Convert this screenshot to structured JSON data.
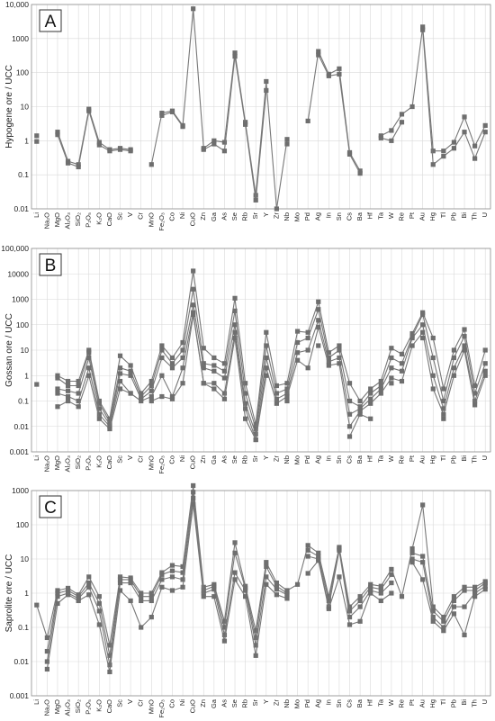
{
  "colors": {
    "series": "#777777",
    "marker": "#6e6e6e",
    "grid": "#d9d9d9",
    "frame": "#8c8c8c"
  },
  "chart_data": [
    {
      "type": "line",
      "yscale": "log",
      "panel_label": "A",
      "ylabel": "Hypogene ore / UCC",
      "ylim": [
        0.01,
        10000
      ],
      "yticks": [
        "0.01",
        "0.1",
        "1",
        "10",
        "100",
        "1000",
        "10,000"
      ],
      "categories": [
        "Li",
        "Na₂O",
        "MgO",
        "Al₂O₃",
        "SiO₂",
        "P₂O₅",
        "K₂O",
        "CaO",
        "Sc",
        "V",
        "Cr",
        "MnO",
        "Fe₂O₃",
        "Co",
        "Ni",
        "CuO",
        "Zn",
        "Ga",
        "As",
        "Se",
        "Rb",
        "Sr",
        "Y",
        "Zr",
        "Nb",
        "Mo",
        "Pd",
        "Ag",
        "In",
        "Sn",
        "Cs",
        "Ba",
        "Hf",
        "Ta",
        "W",
        "Re",
        "Pt",
        "Au",
        "Hg",
        "Tl",
        "Pb",
        "Bi",
        "Th",
        "U"
      ],
      "grid": true,
      "series": [
        {
          "values": [
            1.4,
            null,
            1.8,
            0.25,
            0.2,
            8.5,
            0.9,
            0.55,
            0.6,
            0.55,
            null,
            0.2,
            6.5,
            7.5,
            2.8,
            7500,
            0.6,
            1.0,
            0.9,
            380,
            3.5,
            0.025,
            55,
            0.01,
            1.1,
            null,
            3.8,
            420,
            90,
            130,
            0.45,
            0.13,
            null,
            1.4,
            2.0,
            6.0,
            10,
            2200,
            0.5,
            0.5,
            0.9,
            5.0,
            0.7,
            2.8
          ]
        },
        {
          "values": [
            0.95,
            null,
            1.5,
            0.22,
            0.17,
            7.5,
            0.75,
            0.5,
            0.55,
            0.5,
            null,
            null,
            5.5,
            7.0,
            2.6,
            null,
            0.55,
            0.8,
            0.5,
            300,
            3.0,
            0.018,
            30,
            null,
            0.8,
            null,
            null,
            330,
            80,
            90,
            0.4,
            0.11,
            null,
            1.2,
            1.0,
            3.5,
            null,
            1800,
            0.2,
            0.35,
            0.6,
            1.8,
            0.3,
            1.8
          ]
        }
      ]
    },
    {
      "type": "line",
      "yscale": "log",
      "panel_label": "B",
      "ylabel": "Gossan ore / UCC",
      "ylim": [
        0.001,
        100000
      ],
      "yticks": [
        "0.001",
        "0.01",
        "0.1",
        "1",
        "10",
        "100",
        "1000",
        "10000",
        "100,000"
      ],
      "categories": [
        "Li",
        "Na₂O",
        "MgO",
        "Al₂O₃",
        "SiO₂",
        "P₂O₅",
        "K₂O",
        "CaO",
        "Sc",
        "V",
        "Cr",
        "MnO",
        "Fe₂O₃",
        "Co",
        "Ni",
        "CuO",
        "Zn",
        "Ga",
        "As",
        "Se",
        "Rb",
        "Sr",
        "Y",
        "Zr",
        "Nb",
        "Mo",
        "Pd",
        "Ag",
        "In",
        "Sn",
        "Cs",
        "Ba",
        "Hf",
        "Ta",
        "W",
        "Re",
        "Pt",
        "Au",
        "Hg",
        "Tl",
        "Pb",
        "Bi",
        "Th",
        "U"
      ],
      "grid": true,
      "series": [
        {
          "values": [
            0.45,
            null,
            1.0,
            0.6,
            0.6,
            10,
            0.1,
            0.02,
            6.0,
            2.5,
            0.2,
            0.6,
            15,
            5.0,
            20,
            13000,
            12,
            5.0,
            3.0,
            1100,
            0.5,
            0.012,
            50,
            0.4,
            0.5,
            55,
            50,
            800,
            8.0,
            15,
            0.5,
            0.1,
            0.3,
            0.6,
            12,
            7.0,
            45,
            300,
            30,
            0.3,
            10,
            65,
            0.4,
            10
          ]
        },
        {
          "values": [
            null,
            null,
            0.8,
            0.4,
            0.4,
            8.0,
            0.08,
            0.015,
            2.0,
            1.5,
            0.15,
            0.4,
            10,
            3.0,
            10,
            2500,
            3.0,
            2.5,
            1.5,
            350,
            0.2,
            0.008,
            15,
            0.2,
            0.3,
            20,
            30,
            400,
            5.0,
            10,
            0.1,
            0.06,
            0.2,
            0.4,
            5.0,
            3.0,
            35,
            250,
            5.0,
            0.1,
            5.0,
            35,
            0.2,
            3.0
          ]
        },
        {
          "values": [
            null,
            null,
            0.3,
            0.25,
            0.2,
            5.0,
            0.05,
            0.012,
            1.2,
            1.0,
            0.12,
            0.25,
            5.0,
            2.0,
            5.0,
            600,
            2.0,
            1.5,
            0.8,
            100,
            0.08,
            0.005,
            5.0,
            0.12,
            0.2,
            8.0,
            10,
            150,
            3.5,
            5.0,
            0.03,
            0.05,
            0.12,
            0.3,
            2.0,
            1.5,
            30,
            100,
            1.0,
            0.05,
            2.0,
            15,
            0.1,
            1.5
          ]
        },
        {
          "values": [
            null,
            null,
            0.2,
            0.15,
            0.1,
            2.0,
            0.03,
            0.01,
            0.6,
            0.2,
            0.1,
            0.15,
            1.0,
            0.15,
            2.0,
            300,
            0.5,
            0.5,
            0.2,
            50,
            0.05,
            0.003,
            2.0,
            0.08,
            0.15,
            4.0,
            2.0,
            80,
            2.5,
            3.0,
            0.01,
            0.04,
            0.08,
            0.2,
            0.8,
            0.6,
            15,
            50,
            0.3,
            0.03,
            1.0,
            10,
            0.07,
            1.0
          ]
        },
        {
          "values": [
            null,
            null,
            0.06,
            0.1,
            0.06,
            1.0,
            0.02,
            0.008,
            0.3,
            0.2,
            null,
            0.1,
            0.15,
            0.12,
            0.5,
            250,
            0.5,
            0.3,
            0.12,
            30,
            0.02,
            0.003,
            1.0,
            null,
            0.1,
            null,
            null,
            15,
            null,
            null,
            0.004,
            0.03,
            0.02,
            null,
            0.5,
            null,
            null,
            30,
            null,
            0.02,
            null,
            null,
            null,
            null
          ]
        }
      ]
    },
    {
      "type": "line",
      "yscale": "log",
      "panel_label": "C",
      "ylabel": "Saprolite ore / UCC",
      "ylim": [
        0.001,
        1000
      ],
      "yticks": [
        "0.001",
        "0.01",
        "0.1",
        "1",
        "10",
        "100",
        "1000"
      ],
      "categories": [
        "Li",
        "Na₂O",
        "MgO",
        "Al₂O₃",
        "SiO₂",
        "P₂O₅",
        "K₂O",
        "CaO",
        "Sc",
        "V",
        "Cr",
        "MnO",
        "Fe₂O₃",
        "Co",
        "Ni",
        "CuO",
        "Zn",
        "Ga",
        "As",
        "Se",
        "Rb",
        "Sr",
        "Y",
        "Zr",
        "Nb",
        "Mo",
        "Pd",
        "Ag",
        "In",
        "Sn",
        "Cs",
        "Ba",
        "Hf",
        "Ta",
        "W",
        "Re",
        "Pt",
        "Au",
        "Hg",
        "Tl",
        "Pb",
        "Bi",
        "Th",
        "U"
      ],
      "grid": true,
      "series": [
        {
          "values": [
            0.45,
            0.05,
            1.2,
            1.4,
            0.9,
            3.0,
            0.8,
            0.03,
            3.0,
            2.8,
            1.0,
            1.0,
            4.0,
            6.5,
            6.0,
            1400,
            1.5,
            1.8,
            0.15,
            30,
            1.6,
            0.08,
            8.0,
            2.0,
            1.2,
            1.8,
            25,
            15,
            0.8,
            22,
            0.4,
            0.8,
            1.8,
            1.6,
            5.0,
            0.8,
            20,
            380,
            0.4,
            0.2,
            0.8,
            1.5,
            1.5,
            2.2
          ]
        },
        {
          "values": [
            null,
            0.02,
            1.0,
            1.2,
            0.8,
            2.0,
            0.5,
            0.015,
            2.5,
            2.5,
            0.8,
            0.8,
            3.5,
            4.5,
            4.0,
            900,
            1.2,
            1.6,
            0.1,
            15,
            1.4,
            0.05,
            6.0,
            1.6,
            1.0,
            null,
            18,
            12,
            0.6,
            20,
            0.3,
            0.6,
            1.5,
            1.3,
            3.5,
            null,
            15,
            12,
            0.3,
            0.15,
            0.6,
            1.2,
            1.2,
            2.0
          ]
        },
        {
          "values": [
            null,
            0.01,
            0.8,
            1.0,
            0.7,
            1.5,
            0.3,
            0.008,
            2.0,
            2.0,
            0.6,
            0.6,
            2.5,
            3.0,
            2.5,
            600,
            1.0,
            1.3,
            0.06,
            4.0,
            1.2,
            0.03,
            3.0,
            1.3,
            0.9,
            null,
            12,
            10,
            0.4,
            18,
            0.2,
            0.4,
            1.2,
            1.0,
            2.0,
            null,
            10,
            8.0,
            0.2,
            0.1,
            0.4,
            0.4,
            1.0,
            1.6
          ]
        },
        {
          "values": [
            null,
            0.006,
            0.5,
            0.9,
            0.6,
            0.9,
            0.12,
            0.005,
            1.2,
            0.6,
            0.1,
            0.2,
            1.5,
            1.2,
            1.5,
            400,
            0.8,
            0.8,
            0.04,
            2.5,
            0.8,
            0.015,
            1.8,
            0.9,
            0.7,
            null,
            3.8,
            9.0,
            0.35,
            3.0,
            0.12,
            0.15,
            1.0,
            0.6,
            1.0,
            null,
            8.0,
            2.5,
            0.15,
            0.08,
            0.25,
            0.06,
            0.8,
            1.3
          ]
        }
      ]
    }
  ]
}
